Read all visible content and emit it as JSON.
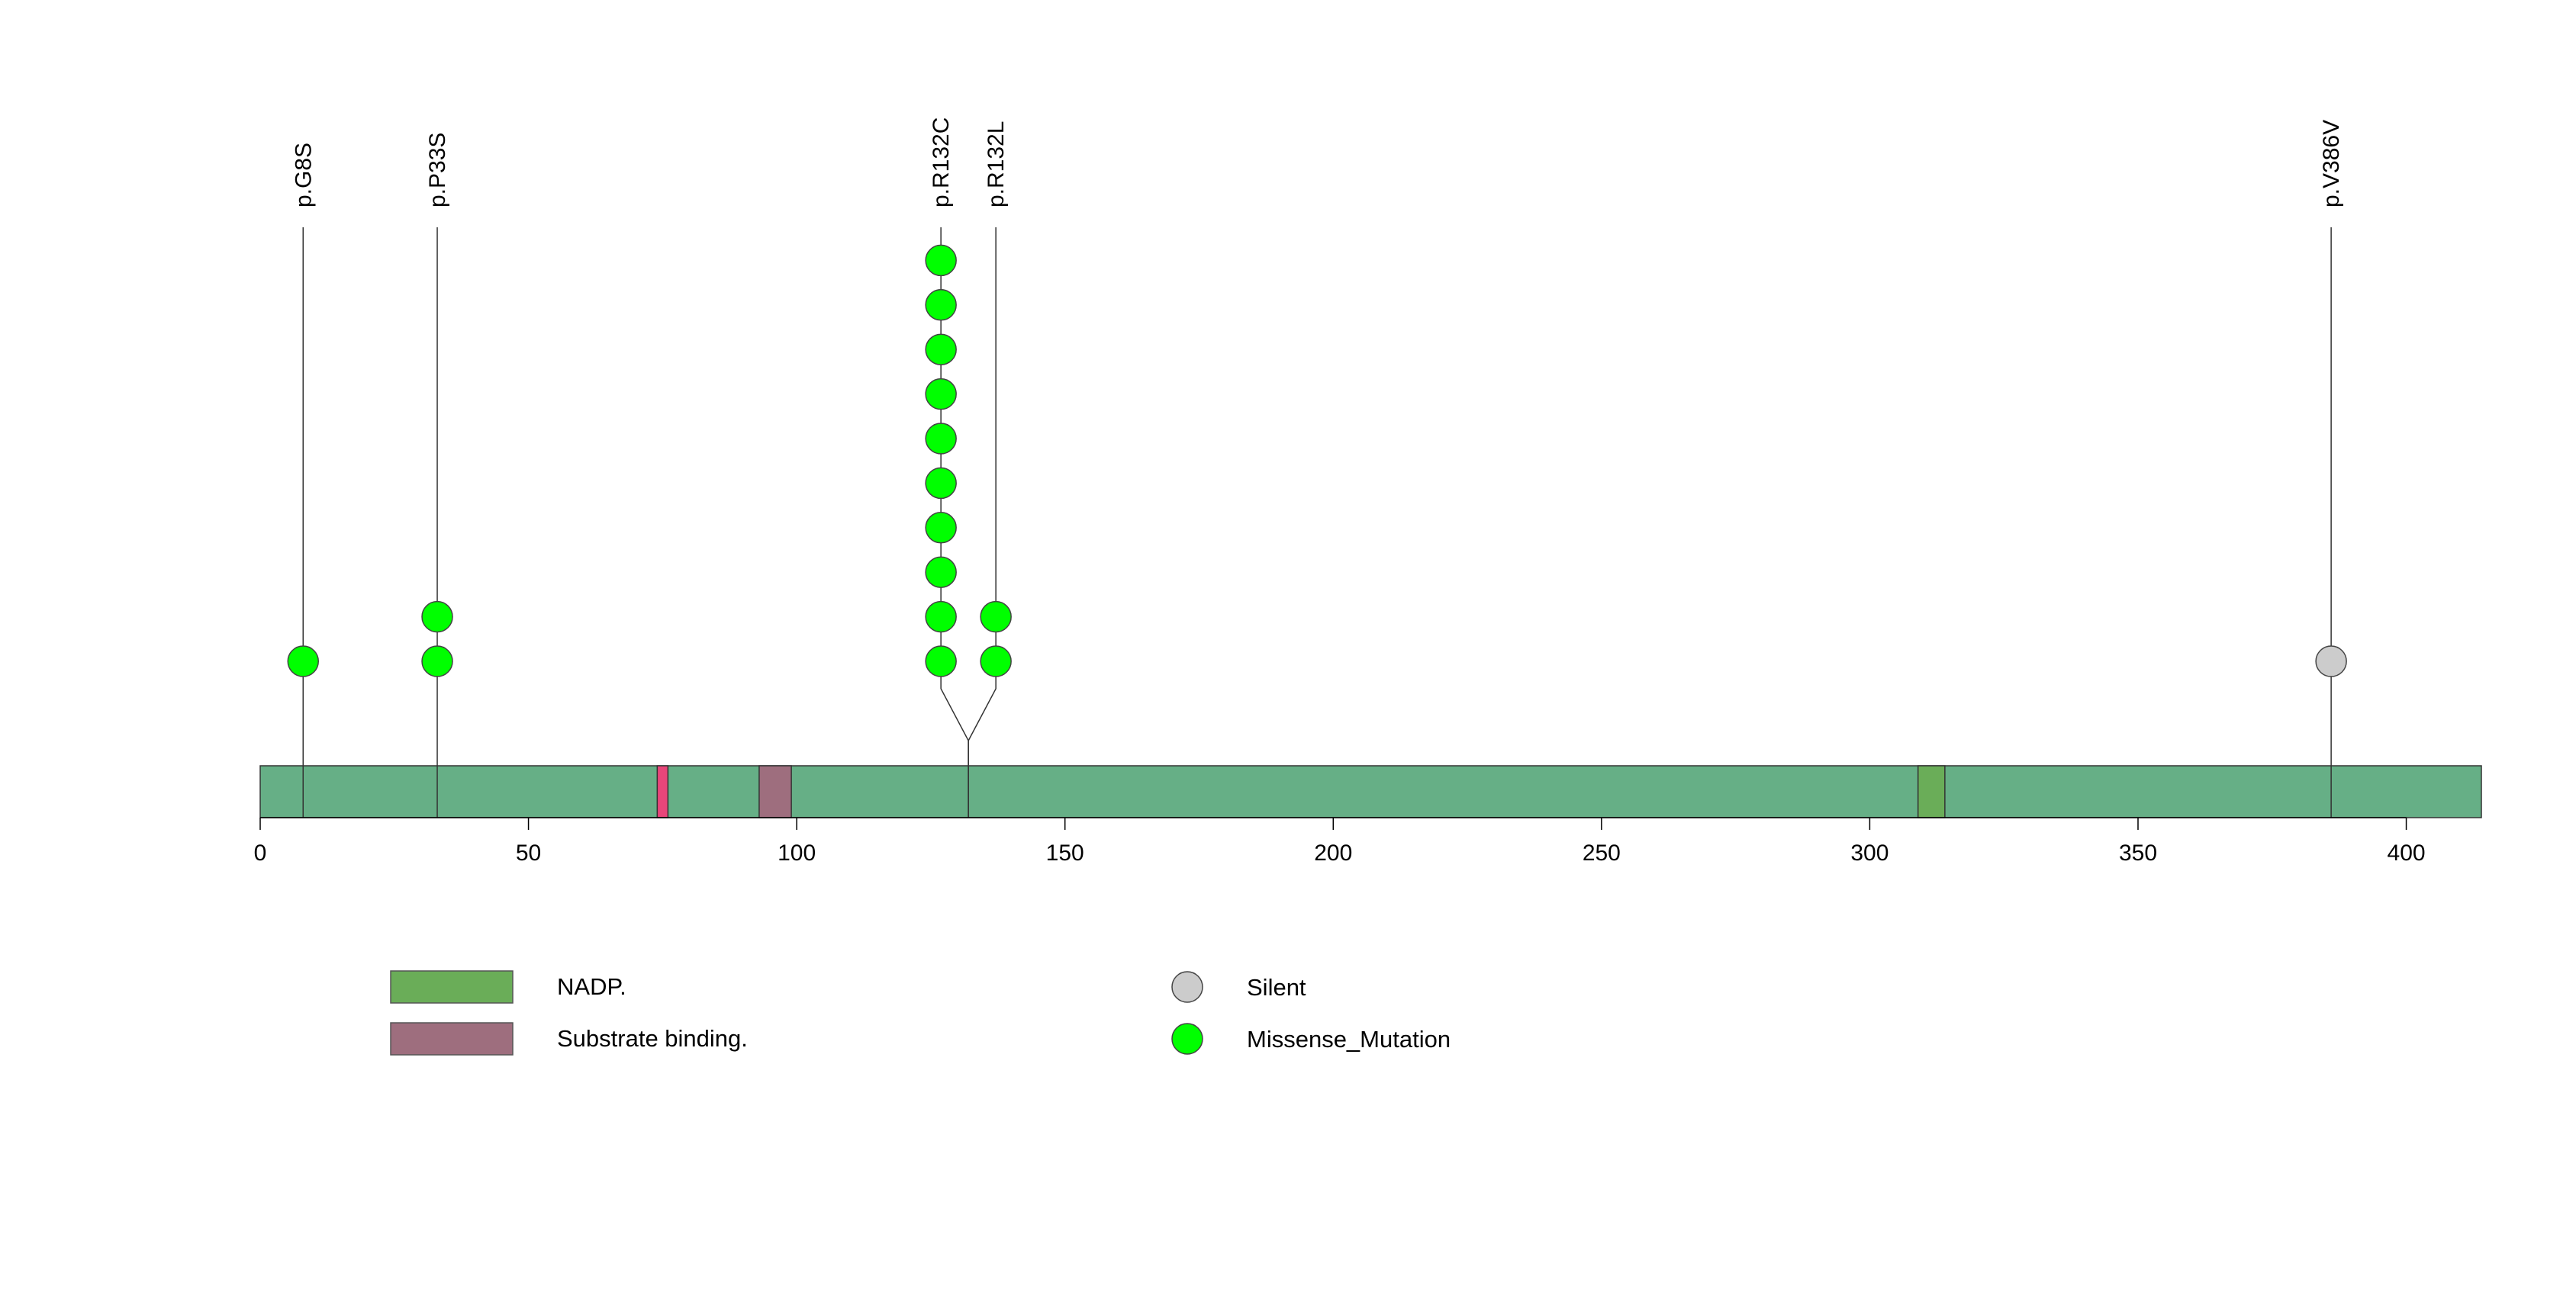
{
  "chart_data": {
    "type": "lollipop",
    "x_axis": {
      "min": 0,
      "max": 414,
      "ticks": [
        0,
        50,
        100,
        150,
        200,
        250,
        300,
        350,
        400
      ],
      "tick_labels": [
        "0",
        "50",
        "100",
        "150",
        "200",
        "250",
        "300",
        "350",
        "400"
      ]
    },
    "protein_length": 414,
    "domains": [
      {
        "name": "NADP.",
        "start": 309,
        "end": 314,
        "color": "#6aad58"
      },
      {
        "name": "Substrate binding.",
        "start": 93,
        "end": 99,
        "color": "#9e6e7e"
      },
      {
        "name": "",
        "start": 74,
        "end": 76,
        "color": "#e8467a"
      }
    ],
    "mutations": [
      {
        "label": "p.G8S",
        "position": 8,
        "count": 1,
        "type": "Missense_Mutation"
      },
      {
        "label": "p.P33S",
        "position": 33,
        "count": 2,
        "type": "Missense_Mutation"
      },
      {
        "label": "p.R132C",
        "position": 132,
        "count": 10,
        "type": "Missense_Mutation"
      },
      {
        "label": "p.R132L",
        "position": 132,
        "count": 2,
        "type": "Missense_Mutation"
      },
      {
        "label": "p.V386V",
        "position": 386,
        "count": 1,
        "type": "Silent"
      }
    ],
    "legend": {
      "domains": [
        {
          "label": "NADP.",
          "color": "#6aad58"
        },
        {
          "label": "Substrate binding.",
          "color": "#9e6e7e"
        }
      ],
      "mutation_types": [
        {
          "label": "Silent",
          "color": "#cccccc"
        },
        {
          "label": "Missense_Mutation",
          "color": "#00ff00"
        }
      ]
    },
    "colors": {
      "backbone": "#66af86",
      "line": "#333333"
    }
  }
}
